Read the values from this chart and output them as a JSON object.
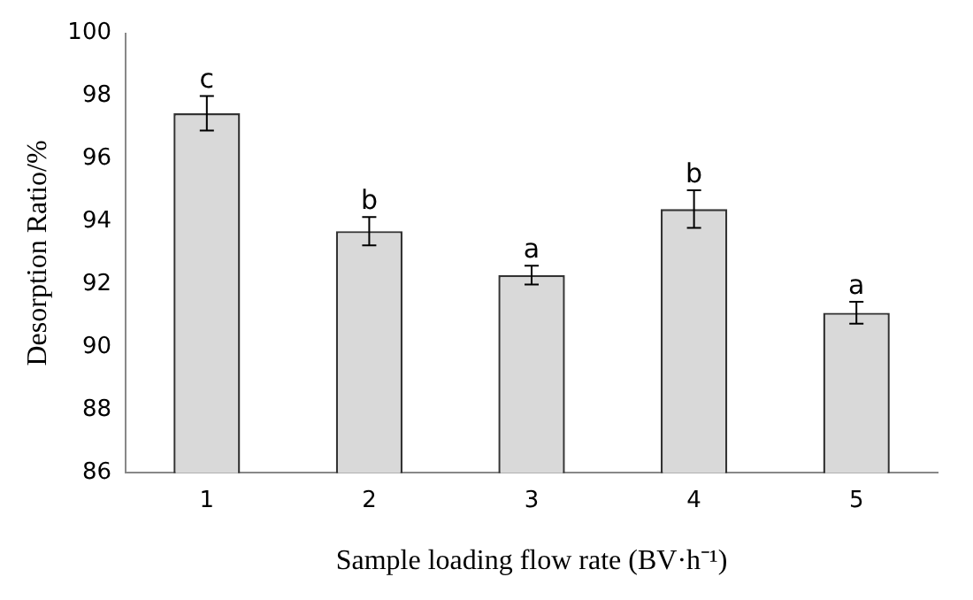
{
  "chart_data": {
    "type": "bar",
    "xlabel": "Sample loading flow rate (BV·h⁻¹)",
    "ylabel": "Desorption Ratio/%",
    "categories": [
      "1",
      "2",
      "3",
      "4",
      "5"
    ],
    "values": [
      97.45,
      93.7,
      92.3,
      94.4,
      91.1
    ],
    "errors": [
      0.55,
      0.45,
      0.3,
      0.6,
      0.35
    ],
    "color": "#d9d9d9",
    "ylim": [
      86,
      100
    ],
    "yticks": [
      86,
      88,
      90,
      92,
      94,
      96,
      98,
      100
    ],
    "grid": false,
    "annotations": [
      {
        "text": "c",
        "x": "1",
        "y": 98.0
      },
      {
        "text": "b",
        "x": "2",
        "y": 94.15
      },
      {
        "text": "a",
        "x": "3",
        "y": 92.6
      },
      {
        "text": "b",
        "x": "4",
        "y": 95.0
      },
      {
        "text": "a",
        "x": "5",
        "y": 91.45
      }
    ]
  }
}
